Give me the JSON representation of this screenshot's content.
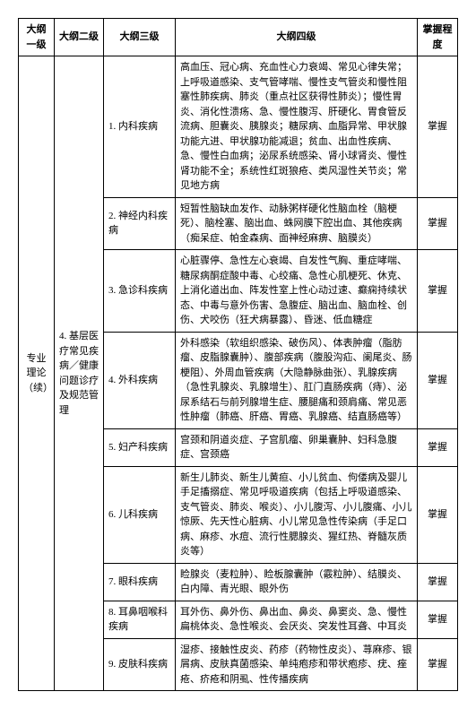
{
  "headers": {
    "c1": "大纲一级",
    "c2": "大纲二级",
    "c3": "大纲三级",
    "c4": "大纲四级",
    "c5": "掌握程度"
  },
  "col1_label": "专业理论（续）",
  "col2_label": "4. 基层医疗常见疾病／健康问题诊疗及规范管理",
  "rows": [
    {
      "l3": "1. 内科疾病",
      "l4": "高血压、冠心病、充血性心力衰竭、常见心律失常；上呼吸道感染、支气管哮喘、慢性支气管炎和慢性阻塞性肺疾病、肺炎（重点社区获得性肺炎）；慢性胃炎、消化性溃疡、急、慢性腹泻、肝硬化、胃食管反流病、胆囊炎、胰腺炎；糖尿病、血脂异常、甲状腺功能亢进、甲状腺功能减退；贫血、出血性疾病、急、慢性白血病；泌尿系统感染、肾小球肾炎、慢性肾功能不全；系统性红斑狼疮、类风湿性关节炎；常见地方病",
      "l5": "掌握"
    },
    {
      "l3": "2. 神经内科疾病",
      "l4": "短暂性脑缺血发作、动脉粥样硬化性脑血栓（脑梗死）、脑栓塞、脑出血、蛛网膜下腔出血、其他疾病（痴呆症、帕金森病、面神经麻痹、脑膜炎）",
      "l5": "掌握"
    },
    {
      "l3": "3. 急诊科疾病",
      "l4": "心脏骤停、急性左心衰竭、自发性气胸、重症哮喘、糖尿病酮症酸中毒、心绞痛、急性心肌梗死、休克、上消化道出血、阵发性室上性心动过速、癫痫持续状态、中毒与意外伤害、急腹症、脑出血、脑血栓、创伤、犬咬伤（狂犬病暴露）、昏迷、低血糖症",
      "l5": "掌握"
    },
    {
      "l3": "4. 外科疾病",
      "l4": "外科感染（软组织感染、破伤风）、体表肿瘤（脂肪瘤、皮脂腺囊肿）、腹部疾病（腹股沟疝、阑尾炎、肠梗阻）、外周血管疾病（大隐静脉曲张）、乳腺疾病（急性乳腺炎、乳腺增生）、肛门直肠疾病（痔）、泌尿系结石与前列腺增生症、腰腿痛和颈肩痛、常见恶性肿瘤（肺癌、肝癌、胃癌、乳腺癌、结直肠癌等）",
      "l5": "掌握"
    },
    {
      "l3": "5. 妇产科疾病",
      "l4": "宫颈和阴道炎症、子宫肌瘤、卵巢囊肿、妇科急腹症、宫颈癌",
      "l5": "掌握"
    },
    {
      "l3": "6. 儿科疾病",
      "l4": "新生儿肺炎、新生儿黄疸、小儿贫血、佝偻病及婴儿手足搐搦症、常见呼吸道疾病（包括上呼吸道感染、支气管炎、肺炎、喉炎）、小儿腹泻、小儿腹痛、小儿惊厥、先天性心脏病、小儿常见急性传染病（手足口病、麻疹、水痘、流行性腮腺炎、猩红热、脊髓灰质炎等）",
      "l5": "掌握"
    },
    {
      "l3": "7. 眼科疾病",
      "l4": "睑腺炎（麦粒肿）、睑板腺囊肿（霰粒肿）、结膜炎、白内障、青光眼、眼外伤",
      "l5": "掌握"
    },
    {
      "l3": "8. 耳鼻咽喉科疾病",
      "l4": "耳外伤、鼻外伤、鼻出血、鼻炎、鼻窦炎、急、慢性扁桃体炎、急性喉炎、会厌炎、突发性耳聋、中耳炎",
      "l5": "掌握"
    },
    {
      "l3": "9. 皮肤科疾病",
      "l4": "湿疹、接触性皮炎、药疹（药物性皮炎）、荨麻疹、银屑病、皮肤真菌感染、单纯疱疹和带状疱疹、疣、痤疮、疥疮和阴虱、性传播疾病",
      "l5": "掌握"
    }
  ]
}
